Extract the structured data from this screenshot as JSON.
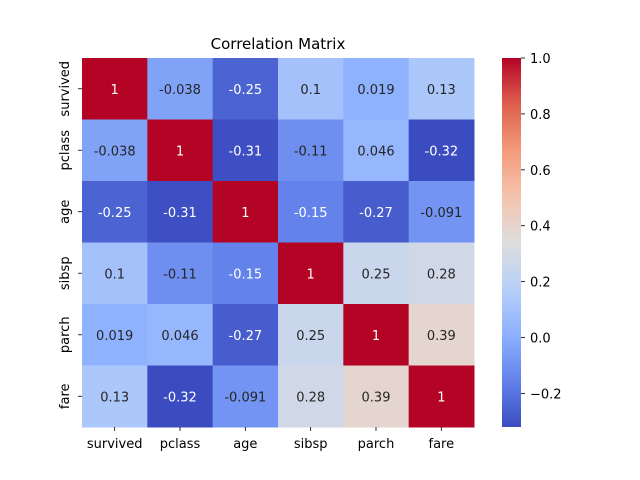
{
  "chart_data": {
    "type": "heatmap",
    "title": "Correlation Matrix",
    "xlabel": "",
    "ylabel": "",
    "x_categories": [
      "survived",
      "pclass",
      "age",
      "sibsp",
      "parch",
      "fare"
    ],
    "y_categories": [
      "survived",
      "pclass",
      "age",
      "sibsp",
      "parch",
      "fare"
    ],
    "values": [
      [
        1,
        -0.038,
        -0.25,
        0.1,
        0.019,
        0.13
      ],
      [
        -0.038,
        1,
        -0.31,
        -0.11,
        0.046,
        -0.32
      ],
      [
        -0.25,
        -0.31,
        1,
        -0.15,
        -0.27,
        -0.091
      ],
      [
        0.1,
        -0.11,
        -0.15,
        1,
        0.25,
        0.28
      ],
      [
        0.019,
        0.046,
        -0.27,
        0.25,
        1,
        0.39
      ],
      [
        0.13,
        -0.32,
        -0.091,
        0.28,
        0.39,
        1
      ]
    ],
    "value_labels": [
      [
        "1",
        "-0.038",
        "-0.25",
        "0.1",
        "0.019",
        "0.13"
      ],
      [
        "-0.038",
        "1",
        "-0.31",
        "-0.11",
        "0.046",
        "-0.32"
      ],
      [
        "-0.25",
        "-0.31",
        "1",
        "-0.15",
        "-0.27",
        "-0.091"
      ],
      [
        "0.1",
        "-0.11",
        "-0.15",
        "1",
        "0.25",
        "0.28"
      ],
      [
        "0.019",
        "0.046",
        "-0.27",
        "0.25",
        "1",
        "0.39"
      ],
      [
        "0.13",
        "-0.32",
        "-0.091",
        "0.28",
        "0.39",
        "1"
      ]
    ],
    "colormap": "coolwarm",
    "color_range": [
      -0.32,
      1.0
    ],
    "colorbar_ticks": [
      "1.0",
      "0.8",
      "0.6",
      "0.4",
      "0.2",
      "0.0",
      "−0.2"
    ],
    "colorbar_tick_values": [
      1.0,
      0.8,
      0.6,
      0.4,
      0.2,
      0.0,
      -0.2
    ],
    "grid": false,
    "legend": "colorbar-right"
  }
}
